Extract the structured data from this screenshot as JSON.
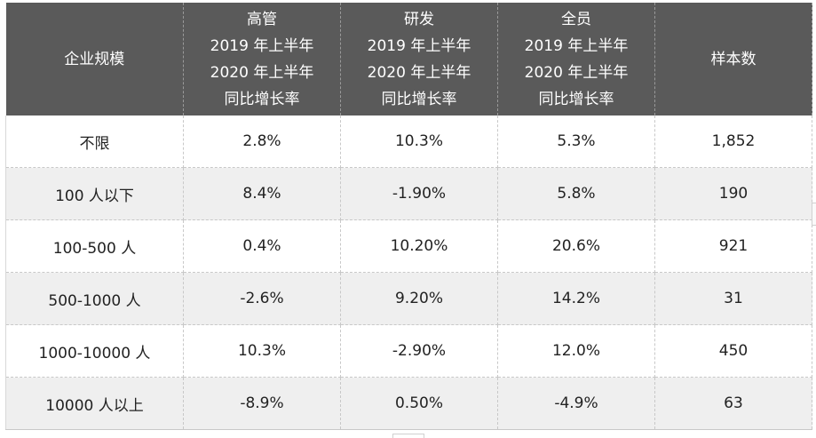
{
  "table": {
    "headers": [
      {
        "lines": [
          "企业规模"
        ]
      },
      {
        "lines": [
          "高管",
          "2019 年上半年",
          "2020 年上半年",
          "同比增长率"
        ]
      },
      {
        "lines": [
          "研发",
          "2019 年上半年",
          "2020 年上半年",
          "同比增长率"
        ]
      },
      {
        "lines": [
          "全员",
          "2019 年上半年",
          "2020 年上半年",
          "同比增长率"
        ]
      },
      {
        "lines": [
          "样本数"
        ]
      }
    ],
    "rows": [
      [
        "不限",
        "2.8%",
        "10.3%",
        "5.3%",
        "1,852"
      ],
      [
        "100  人以下",
        "8.4%",
        "-1.90%",
        "5.8%",
        "190"
      ],
      [
        "100-500  人",
        "0.4%",
        "10.20%",
        "20.6%",
        "921"
      ],
      [
        "500-1000  人",
        "-2.6%",
        "9.20%",
        "14.2%",
        "31"
      ],
      [
        "1000-10000  人",
        "10.3%",
        "-2.90%",
        "12.0%",
        "450"
      ],
      [
        "10000  人以上",
        "-8.9%",
        "0.50%",
        "-4.9%",
        "63"
      ]
    ]
  },
  "colors": {
    "header_bg": "#5a5a5a",
    "header_text": "#ffffff",
    "stripe_bg": "#efefef",
    "body_text": "#222222"
  }
}
